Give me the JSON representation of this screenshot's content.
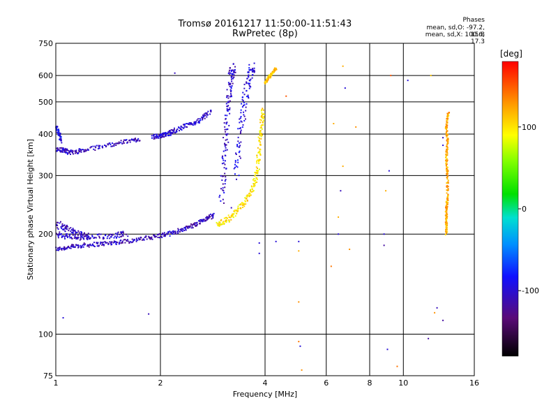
{
  "header": {
    "title_line1": "Tromsø 20161217 11:50:00-11:51:43",
    "title_line2": "RwPretec (8p)"
  },
  "phase_info": {
    "heading": "Phases",
    "line_o": "mean, sd,O: -97.2, 15.8",
    "line_x": "mean, sd,X: 100.6, 17.3"
  },
  "colorbar": {
    "unit_label": "[deg]",
    "range": [
      -180,
      180
    ],
    "ticks": [
      100,
      0,
      -100
    ],
    "tick_labels": [
      "100",
      "0",
      "-100"
    ]
  },
  "chart_data": {
    "type": "scatter",
    "title": "Tromsø 20161217 11:50:00-11:51:43",
    "subtitle": "RwPretec (8p)",
    "xlabel": "Frequency [MHz]",
    "ylabel": "Stationary phase Virtual Height [km]",
    "x_scale": "log",
    "y_scale": "log",
    "xlim": [
      1,
      16
    ],
    "ylim": [
      75,
      750
    ],
    "x_ticks": [
      1,
      2,
      4,
      6,
      8,
      10,
      16
    ],
    "x_tick_labels": [
      "1",
      "2",
      "4",
      "6",
      "8",
      "10",
      "16"
    ],
    "y_ticks": [
      75,
      100,
      200,
      300,
      400,
      500,
      600,
      750
    ],
    "y_tick_labels": [
      "75",
      "100",
      "200",
      "300",
      "400",
      "500",
      "600",
      "750"
    ],
    "grid": true,
    "color_variable": "phase [deg]",
    "traces": [
      {
        "phase": -110,
        "spread": 0.03,
        "points": [
          [
            1.0,
            180
          ],
          [
            1.1,
            183
          ],
          [
            1.2,
            185
          ],
          [
            1.35,
            187
          ],
          [
            1.5,
            189
          ],
          [
            1.7,
            192
          ],
          [
            1.9,
            196
          ],
          [
            2.1,
            200
          ],
          [
            2.3,
            206
          ],
          [
            2.5,
            213
          ],
          [
            2.7,
            222
          ],
          [
            2.85,
            228
          ]
        ]
      },
      {
        "phase": -105,
        "spread": 0.04,
        "points": [
          [
            1.0,
            200
          ],
          [
            1.1,
            196
          ],
          [
            1.25,
            195
          ],
          [
            1.45,
            198
          ],
          [
            1.6,
            201
          ]
        ]
      },
      {
        "phase": -110,
        "spread": 0.05,
        "points": [
          [
            1.0,
            215
          ],
          [
            1.08,
            207
          ],
          [
            1.15,
            200
          ],
          [
            1.25,
            196
          ]
        ]
      },
      {
        "phase": -108,
        "spread": 0.03,
        "points": [
          [
            1.0,
            360
          ],
          [
            1.05,
            358
          ],
          [
            1.1,
            352
          ],
          [
            1.2,
            357
          ],
          [
            1.4,
            370
          ],
          [
            1.6,
            380
          ],
          [
            1.75,
            387
          ]
        ]
      },
      {
        "phase": -104,
        "spread": 0.03,
        "points": [
          [
            1.9,
            392
          ],
          [
            2.0,
            395
          ],
          [
            2.1,
            400
          ],
          [
            2.2,
            410
          ],
          [
            2.4,
            425
          ],
          [
            2.6,
            440
          ],
          [
            2.8,
            470
          ]
        ]
      },
      {
        "phase": -95,
        "spread": 0.03,
        "points": [
          [
            1.0,
            420
          ],
          [
            1.02,
            400
          ],
          [
            1.04,
            380
          ]
        ]
      },
      {
        "phase": -105,
        "spread": 0.06,
        "points": [
          [
            3.0,
            250
          ],
          [
            3.05,
            330
          ],
          [
            3.1,
            420
          ],
          [
            3.15,
            520
          ],
          [
            3.2,
            600
          ],
          [
            3.25,
            640
          ]
        ]
      },
      {
        "phase": -100,
        "spread": 0.07,
        "points": [
          [
            3.3,
            300
          ],
          [
            3.4,
            400
          ],
          [
            3.5,
            500
          ],
          [
            3.6,
            600
          ],
          [
            3.7,
            640
          ]
        ]
      },
      {
        "phase": 100,
        "spread": 0.04,
        "points": [
          [
            2.9,
            212
          ],
          [
            3.1,
            220
          ],
          [
            3.3,
            232
          ],
          [
            3.5,
            252
          ],
          [
            3.7,
            275
          ],
          [
            3.8,
            310
          ],
          [
            3.85,
            360
          ],
          [
            3.9,
            420
          ],
          [
            3.95,
            480
          ]
        ]
      },
      {
        "phase": 110,
        "spread": 0.02,
        "points": [
          [
            4.0,
            570
          ],
          [
            4.1,
            590
          ],
          [
            4.2,
            610
          ],
          [
            4.3,
            630
          ]
        ]
      },
      {
        "phase": 120,
        "spread": 0.02,
        "points": [
          [
            13.3,
            200
          ],
          [
            13.3,
            220
          ],
          [
            13.3,
            240
          ],
          [
            13.4,
            260
          ],
          [
            13.4,
            300
          ],
          [
            13.3,
            340
          ],
          [
            13.4,
            380
          ],
          [
            13.3,
            420
          ],
          [
            13.5,
            470
          ]
        ]
      }
    ],
    "isolated_points": [
      [
        1.05,
        112,
        -100
      ],
      [
        1.85,
        115,
        -110
      ],
      [
        2.2,
        610,
        -110
      ],
      [
        3.85,
        188,
        -100
      ],
      [
        3.85,
        175,
        -100
      ],
      [
        5.0,
        190,
        -100
      ],
      [
        5.0,
        178,
        120
      ],
      [
        5.0,
        125,
        130
      ],
      [
        5.0,
        95,
        140
      ],
      [
        5.05,
        92,
        -100
      ],
      [
        5.1,
        78,
        130
      ],
      [
        6.5,
        200,
        -100
      ],
      [
        6.5,
        225,
        120
      ],
      [
        6.6,
        270,
        -110
      ],
      [
        6.7,
        320,
        120
      ],
      [
        6.8,
        550,
        -100
      ],
      [
        6.7,
        640,
        120
      ],
      [
        7.3,
        420,
        130
      ],
      [
        7.0,
        180,
        130
      ],
      [
        8.8,
        200,
        -100
      ],
      [
        8.8,
        185,
        -120
      ],
      [
        9.0,
        90,
        -100
      ],
      [
        9.2,
        600,
        150
      ],
      [
        9.6,
        80,
        140
      ],
      [
        10.3,
        580,
        -100
      ],
      [
        11.8,
        97,
        -120
      ],
      [
        12.0,
        600,
        110
      ],
      [
        12.5,
        120,
        -110
      ],
      [
        12.3,
        116,
        130
      ],
      [
        13.0,
        110,
        -120
      ],
      [
        13.0,
        390,
        -110
      ],
      [
        13.0,
        370,
        -100
      ],
      [
        8.9,
        270,
        120
      ],
      [
        9.1,
        310,
        -100
      ],
      [
        6.2,
        160,
        140
      ],
      [
        4.3,
        190,
        -100
      ],
      [
        3.2,
        240,
        -110
      ],
      [
        4.6,
        520,
        150
      ],
      [
        6.3,
        430,
        120
      ]
    ]
  }
}
